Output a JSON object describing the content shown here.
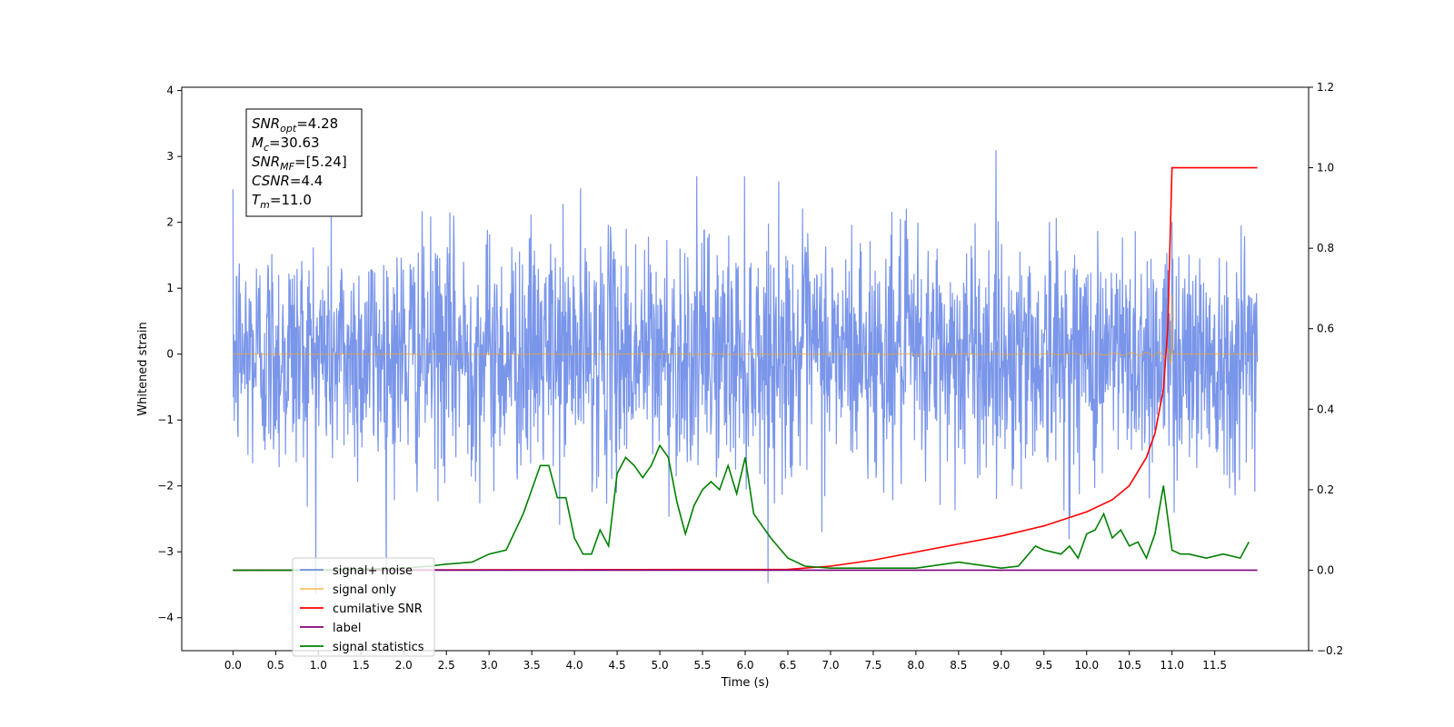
{
  "chart_data": {
    "type": "line",
    "xlabel": "Time (s)",
    "ylabel": "Whitened strain",
    "xlim": [
      -0.6,
      12.6
    ],
    "ylim": [
      -4.5,
      4.05
    ],
    "y2lim": [
      -0.2,
      1.2
    ],
    "x_ticks": [
      0.0,
      0.5,
      1.0,
      1.5,
      2.0,
      2.5,
      3.0,
      3.5,
      4.0,
      4.5,
      5.0,
      5.5,
      6.0,
      6.5,
      7.0,
      7.5,
      8.0,
      8.5,
      9.0,
      9.5,
      10.0,
      10.5,
      11.0,
      11.5
    ],
    "y_ticks": [
      -4,
      -3,
      -2,
      -1,
      0,
      1,
      2,
      3,
      4
    ],
    "y2_ticks": [
      -0.2,
      0.0,
      0.2,
      0.4,
      0.6,
      0.8,
      1.0,
      1.2
    ],
    "grid": false,
    "legend_placement": "lower-left",
    "annotation": {
      "lines": [
        {
          "name": "SNR",
          "sub": "opt",
          "value": "=4.28"
        },
        {
          "name": "M",
          "sub": "c",
          "value": "=30.63"
        },
        {
          "name": "SNR",
          "sub": "MF",
          "value": "=[5.24]"
        },
        {
          "name": "CSNR",
          "sub": "",
          "value": "=4.4"
        },
        {
          "name": "T",
          "sub": "m",
          "value": "=11.0"
        }
      ]
    },
    "series": [
      {
        "name": "signal+ noise",
        "axis": "left",
        "color": "#4169e1",
        "noise_amplitude": 1.9,
        "duration": 12.0
      },
      {
        "name": "signal only",
        "axis": "left",
        "color": "#f5a623",
        "chirp_merger_time": 11.0,
        "chirp_peak": 0.95
      },
      {
        "name": "cumilative SNR",
        "axis": "right",
        "color": "#ff0000",
        "x": [
          0.0,
          6.5,
          7.0,
          7.5,
          8.0,
          8.5,
          9.0,
          9.5,
          10.0,
          10.3,
          10.5,
          10.7,
          10.8,
          10.9,
          10.95,
          11.0,
          12.0
        ],
        "y": [
          0.0,
          0.002,
          0.01,
          0.025,
          0.045,
          0.065,
          0.085,
          0.11,
          0.145,
          0.175,
          0.21,
          0.28,
          0.34,
          0.45,
          0.6,
          1.0,
          1.0
        ]
      },
      {
        "name": "label",
        "axis": "right",
        "color": "#800080",
        "x": [
          0.0,
          12.0
        ],
        "y": [
          0.0,
          0.0
        ]
      },
      {
        "name": "signal statistics",
        "axis": "right",
        "color": "#008000",
        "x": [
          0.0,
          1.0,
          2.0,
          2.3,
          2.5,
          2.8,
          3.0,
          3.2,
          3.4,
          3.5,
          3.6,
          3.7,
          3.8,
          3.9,
          4.0,
          4.1,
          4.2,
          4.3,
          4.4,
          4.5,
          4.6,
          4.7,
          4.8,
          4.9,
          5.0,
          5.1,
          5.2,
          5.3,
          5.4,
          5.5,
          5.6,
          5.7,
          5.8,
          5.9,
          6.0,
          6.1,
          6.2,
          6.3,
          6.5,
          6.7,
          7.0,
          7.5,
          8.0,
          8.5,
          9.0,
          9.2,
          9.4,
          9.5,
          9.7,
          9.8,
          9.9,
          10.0,
          10.1,
          10.2,
          10.3,
          10.4,
          10.5,
          10.6,
          10.7,
          10.8,
          10.9,
          11.0,
          11.1,
          11.2,
          11.4,
          11.6,
          11.8,
          11.9
        ],
        "y": [
          0.0,
          0.0,
          0.005,
          0.01,
          0.015,
          0.02,
          0.04,
          0.05,
          0.14,
          0.2,
          0.26,
          0.26,
          0.18,
          0.18,
          0.08,
          0.04,
          0.04,
          0.1,
          0.06,
          0.24,
          0.28,
          0.26,
          0.23,
          0.26,
          0.31,
          0.28,
          0.17,
          0.09,
          0.16,
          0.2,
          0.22,
          0.2,
          0.26,
          0.19,
          0.28,
          0.14,
          0.11,
          0.08,
          0.03,
          0.01,
          0.005,
          0.005,
          0.005,
          0.02,
          0.005,
          0.01,
          0.06,
          0.05,
          0.04,
          0.06,
          0.03,
          0.09,
          0.1,
          0.14,
          0.08,
          0.1,
          0.06,
          0.07,
          0.03,
          0.09,
          0.21,
          0.05,
          0.04,
          0.04,
          0.03,
          0.04,
          0.03,
          0.07
        ]
      }
    ]
  }
}
